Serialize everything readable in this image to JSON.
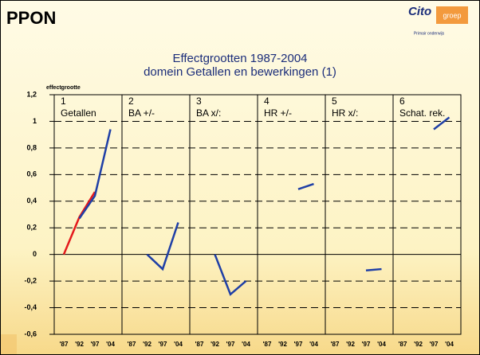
{
  "header": {
    "title": "PPON",
    "logo": "Cito",
    "logo_sub": "groep",
    "tagline": "Primair onderwijs"
  },
  "chart_data": {
    "type": "line",
    "title": "Effectgrootten 1987-2004",
    "subtitle": "domein Getallen en bewerkingen (1)",
    "ylabel": "effectgrootte",
    "categories": [
      "'87",
      "'92",
      "'97",
      "'04"
    ],
    "ylim": [
      -0.6,
      1.2
    ],
    "yticks": [
      {
        "value": 1.2,
        "label": "1,2"
      },
      1,
      {
        "value": 0.8,
        "label": "0,8"
      },
      {
        "value": 0.6,
        "label": "0,6"
      },
      {
        "value": 0.4,
        "label": "0,4"
      },
      {
        "value": 0.2,
        "label": "0,2"
      },
      0,
      {
        "value": -0.2,
        "label": "-0,2"
      },
      {
        "value": -0.4,
        "label": "-0,4"
      },
      {
        "value": -0.6,
        "label": "-0,6"
      }
    ],
    "grid": true,
    "panels": [
      {
        "number": "1",
        "label": "Getallen",
        "series": [
          {
            "color": "#e41a1c",
            "values": [
              0,
              0.28,
              0.47,
              null
            ]
          },
          {
            "color": "#1f3fa6",
            "values": [
              null,
              0.27,
              0.44,
              0.94
            ]
          }
        ]
      },
      {
        "number": "2",
        "label": "BA +/-",
        "series": [
          {
            "color": "#1f3fa6",
            "values": [
              null,
              0,
              -0.11,
              0.24
            ]
          }
        ]
      },
      {
        "number": "3",
        "label": "BA x/:",
        "series": [
          {
            "color": "#1f3fa6",
            "values": [
              null,
              0,
              -0.3,
              -0.2
            ]
          }
        ]
      },
      {
        "number": "4",
        "label": "HR +/-",
        "series": [
          {
            "color": "#e41a1c",
            "values": [
              0,
              null,
              0.49,
              null
            ]
          },
          {
            "color": "#1f3fa6",
            "values": [
              null,
              null,
              0.49,
              0.53
            ]
          }
        ]
      },
      {
        "number": "5",
        "label": "HR x/:",
        "series": [
          {
            "color": "#e41a1c",
            "values": [
              0,
              null,
              -0.12,
              null
            ]
          },
          {
            "color": "#1f3fa6",
            "values": [
              null,
              null,
              -0.12,
              -0.11
            ]
          }
        ]
      },
      {
        "number": "6",
        "label": "Schat. rek.",
        "series": [
          {
            "color": "#e41a1c",
            "values": [
              0,
              null,
              0.94,
              null
            ]
          },
          {
            "color": "#1f3fa6",
            "values": [
              null,
              null,
              0.94,
              1.03
            ]
          }
        ]
      }
    ]
  }
}
